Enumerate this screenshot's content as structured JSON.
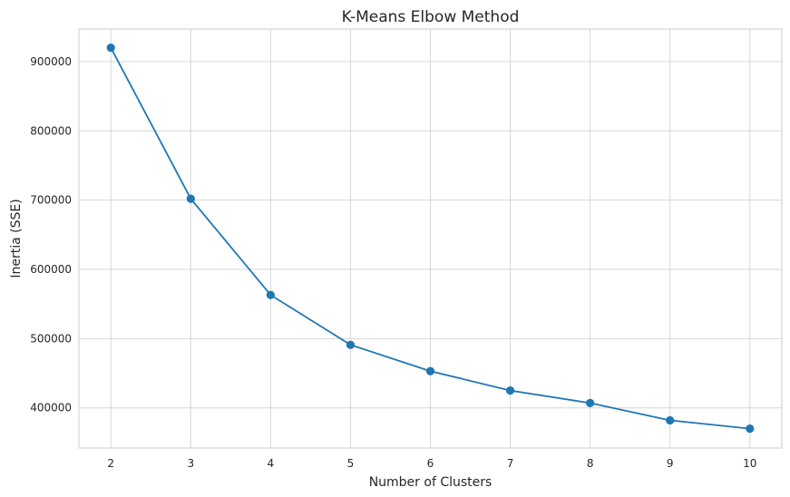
{
  "chart_data": {
    "type": "line",
    "title": "K-Means Elbow Method",
    "xlabel": "Number of Clusters",
    "ylabel": "Inertia (SSE)",
    "x": [
      2,
      3,
      4,
      5,
      6,
      7,
      8,
      9,
      10
    ],
    "series": [
      {
        "values": [
          920000,
          702000,
          563000,
          491000,
          453000,
          425000,
          407000,
          382000,
          370000
        ],
        "color": "#1f77b4",
        "marker": "circle"
      }
    ],
    "xticks": [
      "2",
      "3",
      "4",
      "5",
      "6",
      "7",
      "8",
      "9",
      "10"
    ],
    "yticks": [
      "400000",
      "500000",
      "600000",
      "700000",
      "800000",
      "900000"
    ],
    "ytick_values": [
      400000,
      500000,
      600000,
      700000,
      800000,
      900000
    ],
    "xlim": [
      1.6,
      10.4
    ],
    "ylim": [
      342000,
      947000
    ],
    "grid": true,
    "legend": false
  }
}
